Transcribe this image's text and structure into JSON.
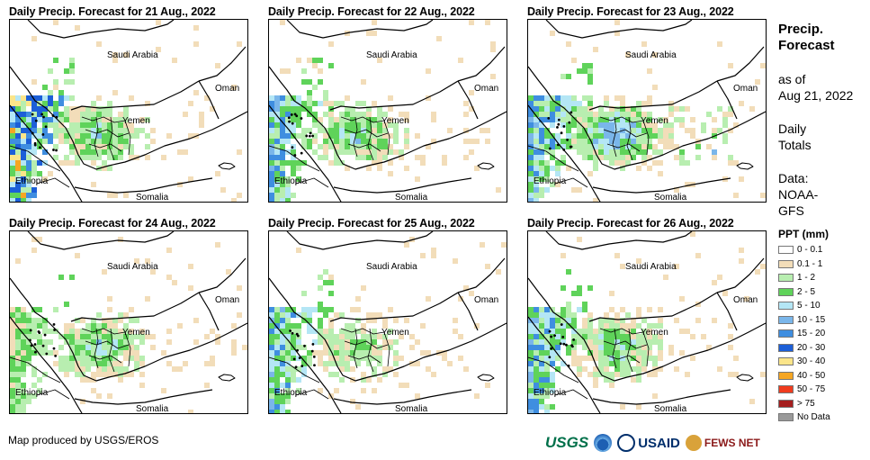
{
  "panels": [
    {
      "title": "Daily Precip. Forecast for 21 Aug., 2022",
      "labels": {
        "saudi": "Saudi Arabia",
        "oman": "Oman",
        "yemen": "Yemen",
        "ethiopia": "Ethiopia",
        "somalia": "Somalia"
      }
    },
    {
      "title": "Daily Precip. Forecast for 22 Aug., 2022",
      "labels": {
        "saudi": "Saudi Arabia",
        "oman": "Oman",
        "yemen": "Yemen",
        "ethiopia": "Ethiopia",
        "somalia": "Somalia"
      }
    },
    {
      "title": "Daily Precip. Forecast for 23 Aug., 2022",
      "labels": {
        "saudi": "Saudi Arabia",
        "oman": "Oman",
        "yemen": "Yemen",
        "ethiopia": "Ethiopia",
        "somalia": "Somalia"
      }
    },
    {
      "title": "Daily Precip. Forecast for 24 Aug., 2022",
      "labels": {
        "saudi": "Saudi Arabia",
        "oman": "Oman",
        "yemen": "Yemen",
        "ethiopia": "Ethiopia",
        "somalia": "Somalia"
      }
    },
    {
      "title": "Daily Precip. Forecast for 25 Aug., 2022",
      "labels": {
        "saudi": "Saudi Arabia",
        "oman": "Oman",
        "yemen": "Yemen",
        "ethiopia": "Ethiopia",
        "somalia": "Somalia"
      }
    },
    {
      "title": "Daily Precip. Forecast for 26 Aug., 2022",
      "labels": {
        "saudi": "Saudi Arabia",
        "oman": "Oman",
        "yemen": "Yemen",
        "ethiopia": "Ethiopia",
        "somalia": "Somalia"
      }
    }
  ],
  "sidebar": {
    "title_line1": "Precip.",
    "title_line2": "Forecast",
    "asof_line1": "as of",
    "asof_line2": "Aug 21, 2022",
    "totals_line1": "Daily",
    "totals_line2": "Totals",
    "data_line1": "Data:",
    "data_line2": "NOAA-",
    "data_line3": "GFS"
  },
  "legend": {
    "title": "PPT (mm)",
    "items": [
      {
        "label": "0 - 0.1",
        "color": "#ffffff"
      },
      {
        "label": "0.1 - 1",
        "color": "#f2ddb9"
      },
      {
        "label": "1 - 2",
        "color": "#b8eeb0"
      },
      {
        "label": "2 - 5",
        "color": "#5fd35a"
      },
      {
        "label": "5 - 10",
        "color": "#b4e6f5"
      },
      {
        "label": "10 - 15",
        "color": "#7ab6ea"
      },
      {
        "label": "15 - 20",
        "color": "#3f8ee0"
      },
      {
        "label": "20 - 30",
        "color": "#1c5fd8"
      },
      {
        "label": "30 - 40",
        "color": "#fbe58a"
      },
      {
        "label": "40 - 50",
        "color": "#f5a623"
      },
      {
        "label": "50 - 75",
        "color": "#f03c1e"
      },
      {
        "label": "> 75",
        "color": "#a51e1e"
      },
      {
        "label": "No Data",
        "color": "#9a9a9a"
      }
    ]
  },
  "footer": {
    "credit": "Map produced by USGS/EROS",
    "logo_usgs": "USGS",
    "logo_usaid": "USAID",
    "logo_fews": "FEWS NET"
  },
  "precip_levels": {
    "21": {
      "west": "heavy",
      "yemen": "moderate",
      "east": "light"
    },
    "22": {
      "west": "moderate",
      "yemen": "moderate",
      "east": "light"
    },
    "23": {
      "west": "moderate",
      "yemen": "heavy",
      "east": "light"
    },
    "24": {
      "west": "light",
      "yemen": "moderate",
      "east": "light"
    },
    "25": {
      "west": "moderate",
      "yemen": "light",
      "east": "light"
    },
    "26": {
      "west": "moderate",
      "yemen": "moderate",
      "east": "light"
    }
  }
}
